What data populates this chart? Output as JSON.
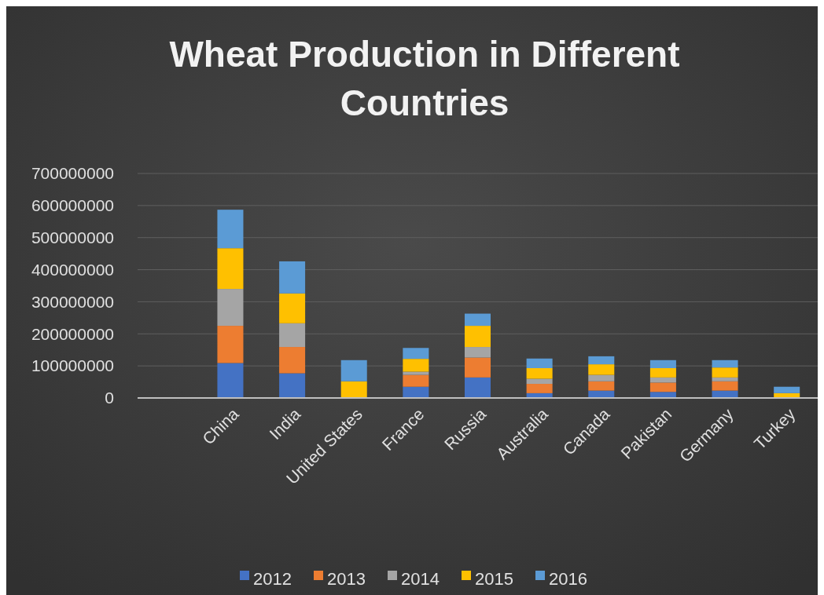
{
  "chart_data": {
    "type": "bar",
    "title": "Wheat Production in Different Countries",
    "stacked": true,
    "categories": [
      null,
      "China",
      "India",
      "United States",
      "France",
      "Russia",
      "Australia",
      "Canada",
      "Pakistan",
      "Germany",
      "Turkey"
    ],
    "series": [
      {
        "name": "2012",
        "color": "#4472c4",
        "values": [
          null,
          109000000,
          77000000,
          null,
          35000000,
          64000000,
          15000000,
          23000000,
          19000000,
          23000000,
          null
        ]
      },
      {
        "name": "2013",
        "color": "#ed7d31",
        "values": [
          null,
          116000000,
          82000000,
          null,
          37000000,
          62000000,
          29000000,
          29000000,
          29000000,
          29000000,
          null
        ]
      },
      {
        "name": "2014",
        "color": "#a5a5a5",
        "values": [
          null,
          115000000,
          74000000,
          null,
          10000000,
          33000000,
          16000000,
          20000000,
          16000000,
          12000000,
          null
        ]
      },
      {
        "name": "2015",
        "color": "#ffc000",
        "values": [
          null,
          127000000,
          93000000,
          52000000,
          40000000,
          66000000,
          33000000,
          33000000,
          29000000,
          31000000,
          15000000
        ]
      },
      {
        "name": "2016",
        "color": "#5b9bd5",
        "values": [
          null,
          120000000,
          100000000,
          66000000,
          34000000,
          38000000,
          30000000,
          25000000,
          25000000,
          23000000,
          20000000
        ]
      }
    ],
    "ylim": [
      0,
      700000000
    ],
    "yticks": [
      0,
      100000000,
      200000000,
      300000000,
      400000000,
      500000000,
      600000000,
      700000000
    ],
    "grid": "y",
    "legend": "bottom"
  }
}
